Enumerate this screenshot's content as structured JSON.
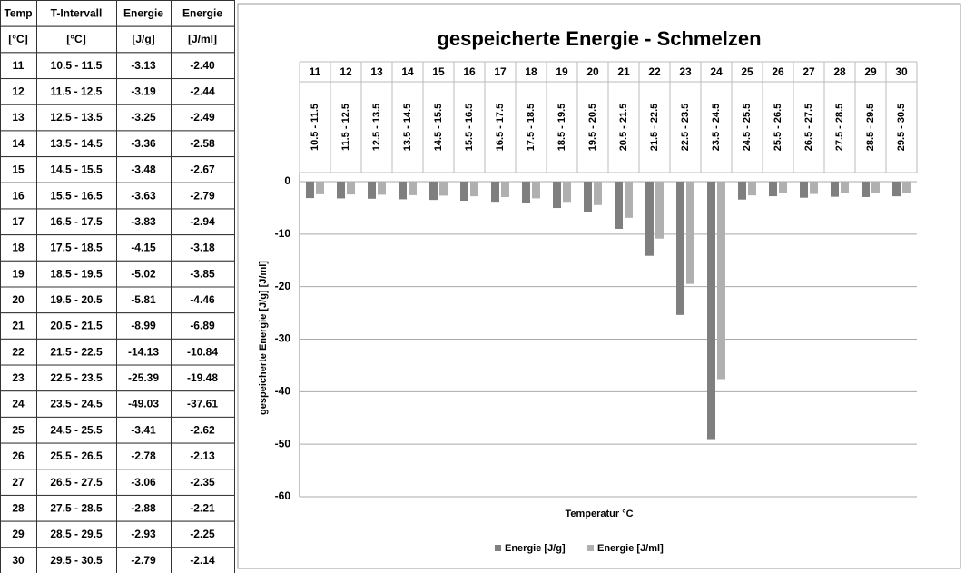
{
  "table": {
    "header": [
      [
        "Temp",
        "T-Intervall",
        "Energie",
        "Energie"
      ],
      [
        "[°C]",
        "[°C]",
        "[J/g]",
        "[J/ml]"
      ]
    ],
    "rows": [
      [
        "11",
        "10.5 - 11.5",
        "-3.13",
        "-2.40"
      ],
      [
        "12",
        "11.5 - 12.5",
        "-3.19",
        "-2.44"
      ],
      [
        "13",
        "12.5 - 13.5",
        "-3.25",
        "-2.49"
      ],
      [
        "14",
        "13.5 - 14.5",
        "-3.36",
        "-2.58"
      ],
      [
        "15",
        "14.5 - 15.5",
        "-3.48",
        "-2.67"
      ],
      [
        "16",
        "15.5 - 16.5",
        "-3.63",
        "-2.79"
      ],
      [
        "17",
        "16.5 - 17.5",
        "-3.83",
        "-2.94"
      ],
      [
        "18",
        "17.5 - 18.5",
        "-4.15",
        "-3.18"
      ],
      [
        "19",
        "18.5 - 19.5",
        "-5.02",
        "-3.85"
      ],
      [
        "20",
        "19.5 - 20.5",
        "-5.81",
        "-4.46"
      ],
      [
        "21",
        "20.5 - 21.5",
        "-8.99",
        "-6.89"
      ],
      [
        "22",
        "21.5 - 22.5",
        "-14.13",
        "-10.84"
      ],
      [
        "23",
        "22.5 - 23.5",
        "-25.39",
        "-19.48"
      ],
      [
        "24",
        "23.5 - 24.5",
        "-49.03",
        "-37.61"
      ],
      [
        "25",
        "24.5 - 25.5",
        "-3.41",
        "-2.62"
      ],
      [
        "26",
        "25.5 - 26.5",
        "-2.78",
        "-2.13"
      ],
      [
        "27",
        "26.5 - 27.5",
        "-3.06",
        "-2.35"
      ],
      [
        "28",
        "27.5 - 28.5",
        "-2.88",
        "-2.21"
      ],
      [
        "29",
        "28.5 - 29.5",
        "-2.93",
        "-2.25"
      ],
      [
        "30",
        "29.5 - 30.5",
        "-2.79",
        "-2.14"
      ]
    ]
  },
  "chart_data": {
    "type": "bar",
    "title": "gespeicherte Energie - Schmelzen",
    "x_label": "Temperatur °C",
    "y_label": "gespeicherte Energie [J/g] [J/ml]",
    "categories": [
      "11",
      "12",
      "13",
      "14",
      "15",
      "16",
      "17",
      "18",
      "19",
      "20",
      "21",
      "22",
      "23",
      "24",
      "25",
      "26",
      "27",
      "28",
      "29",
      "30"
    ],
    "intervals": [
      "10.5 - 11.5",
      "11.5 - 12.5",
      "12.5 - 13.5",
      "13.5 - 14.5",
      "14.5 - 15.5",
      "15.5 - 16.5",
      "16.5 - 17.5",
      "17.5 - 18.5",
      "18.5 - 19.5",
      "19.5 - 20.5",
      "20.5 - 21.5",
      "21.5 - 22.5",
      "22.5 - 23.5",
      "23.5 - 24.5",
      "24.5 - 25.5",
      "25.5 - 26.5",
      "26.5 - 27.5",
      "27.5 - 28.5",
      "28.5 - 29.5",
      "29.5 - 30.5"
    ],
    "series": [
      {
        "name": "Energie [J/g]",
        "color": "#7f7f7f",
        "values": [
          -3.13,
          -3.19,
          -3.25,
          -3.36,
          -3.48,
          -3.63,
          -3.83,
          -4.15,
          -5.02,
          -5.81,
          -8.99,
          -14.13,
          -25.39,
          -49.03,
          -3.41,
          -2.78,
          -3.06,
          -2.88,
          -2.93,
          -2.79
        ]
      },
      {
        "name": "Energie [J/ml]",
        "color": "#b0b0b0",
        "values": [
          -2.4,
          -2.44,
          -2.49,
          -2.58,
          -2.67,
          -2.79,
          -2.94,
          -3.18,
          -3.85,
          -4.46,
          -6.89,
          -10.84,
          -19.48,
          -37.61,
          -2.62,
          -2.13,
          -2.35,
          -2.21,
          -2.25,
          -2.14
        ]
      }
    ],
    "ylim": [
      -60,
      0
    ],
    "yticks": [
      0,
      -10,
      -20,
      -30,
      -40,
      -50,
      -60
    ],
    "grid": true,
    "legend": "bottom"
  }
}
